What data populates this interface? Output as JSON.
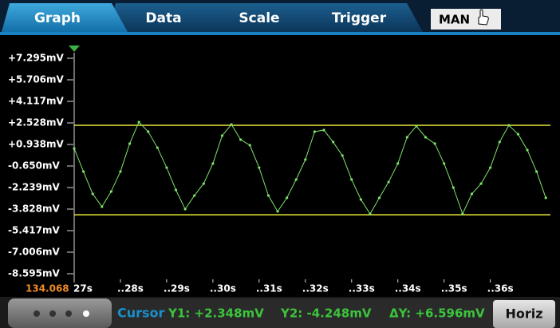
{
  "tabs": [
    "Graph",
    "Data",
    "Scale",
    "Trigger"
  ],
  "mode_button": "MAN",
  "graph": {
    "type": "line",
    "x_origin_label": "134.068",
    "x": [
      27.0,
      27.2,
      27.4,
      27.6,
      27.8,
      28.0,
      28.2,
      28.4,
      28.6,
      28.8,
      29.0,
      29.2,
      29.4,
      29.6,
      29.8,
      30.0,
      30.2,
      30.4,
      30.6,
      30.8,
      31.0,
      31.2,
      31.4,
      31.6,
      31.8,
      32.0,
      32.2,
      32.4,
      32.6,
      32.8,
      33.0,
      33.2,
      33.4,
      33.6,
      33.8,
      34.0,
      34.2,
      34.4,
      34.6,
      34.8,
      35.0,
      35.2,
      35.4,
      35.6,
      35.8,
      36.0,
      36.2,
      36.4,
      36.6,
      36.8,
      37.0,
      37.2
    ],
    "series": [
      {
        "color": "#7ee36a",
        "values": [
          0.64,
          -1.06,
          -2.71,
          -3.65,
          -2.53,
          -1.06,
          1.0,
          2.59,
          1.88,
          0.7,
          -0.77,
          -2.42,
          -3.83,
          -2.83,
          -1.95,
          -0.47,
          1.59,
          2.41,
          1.29,
          0.88,
          -0.77,
          -2.83,
          -4.0,
          -3.0,
          -1.65,
          -0.18,
          1.88,
          2.0,
          1.12,
          0.12,
          -1.65,
          -3.12,
          -4.18,
          -3.0,
          -1.83,
          -0.47,
          1.47,
          2.29,
          1.47,
          1.0,
          -0.47,
          -2.24,
          -4.18,
          -2.71,
          -1.95,
          -0.77,
          1.12,
          2.35,
          1.7,
          0.53,
          -1.06,
          -3.0
        ]
      }
    ],
    "xlim": [
      27,
      37.3
    ],
    "ylim": [
      -8.595,
      7.295
    ],
    "xticks": [
      {
        "value": 27,
        "label": "27s"
      },
      {
        "value": 28,
        "label": "..28s"
      },
      {
        "value": 29,
        "label": "..29s"
      },
      {
        "value": 30,
        "label": "..30s"
      },
      {
        "value": 31,
        "label": "..31s"
      },
      {
        "value": 32,
        "label": "..32s"
      },
      {
        "value": 33,
        "label": "..33s"
      },
      {
        "value": 34,
        "label": "..34s"
      },
      {
        "value": 35,
        "label": "..35s"
      },
      {
        "value": 36,
        "label": "..36s"
      }
    ],
    "yticks": [
      {
        "value": 7.295,
        "label": "+7.295mV"
      },
      {
        "value": 5.706,
        "label": "+5.706mV"
      },
      {
        "value": 4.117,
        "label": "+4.117mV"
      },
      {
        "value": 2.528,
        "label": "+2.528mV"
      },
      {
        "value": 0.938,
        "label": "+0.938mV"
      },
      {
        "value": -0.65,
        "label": "-0.650mV"
      },
      {
        "value": -2.239,
        "label": "-2.239mV"
      },
      {
        "value": -3.828,
        "label": "-3.828mV"
      },
      {
        "value": -5.417,
        "label": "-5.417mV"
      },
      {
        "value": -7.006,
        "label": "-7.006mV"
      },
      {
        "value": -8.595,
        "label": "-8.595mV"
      }
    ],
    "cursors": [
      {
        "label": "Y1: +2.348mV",
        "value": 2.348,
        "color": "#e8e83a"
      },
      {
        "label": "Y2: -4.248mV",
        "value": -4.248,
        "color": "#e8e83a"
      }
    ]
  },
  "cursor_bar": {
    "title": "Cursor",
    "delta": "ΔY: +6.596mV",
    "button": "Horiz"
  }
}
